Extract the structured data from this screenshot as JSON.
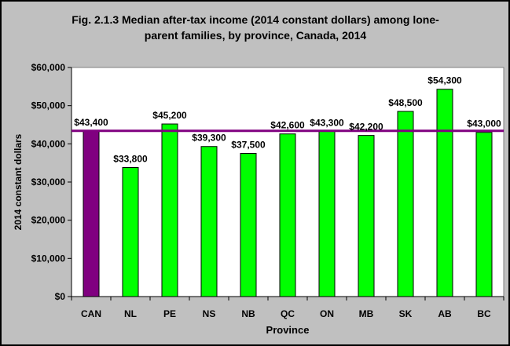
{
  "chart_data": {
    "type": "bar",
    "title_lines": [
      "Fig. 2.1.3 Median after-tax income (2014 constant dollars) among lone-",
      "parent families, by province, Canada, 2014"
    ],
    "xlabel": "Province",
    "ylabel": "2014 constant dollars",
    "categories": [
      "CAN",
      "NL",
      "PE",
      "NS",
      "NB",
      "QC",
      "ON",
      "MB",
      "SK",
      "AB",
      "BC"
    ],
    "values": [
      43400,
      33800,
      45200,
      39300,
      37500,
      42600,
      43300,
      42200,
      48500,
      54300,
      43000
    ],
    "data_labels": [
      "$43,400",
      "$33,800",
      "$45,200",
      "$39,300",
      "$37,500",
      "$42,600",
      "$43,300",
      "$42,200",
      "$48,500",
      "$54,300",
      "$43,000"
    ],
    "ylim": [
      0,
      60000
    ],
    "y_ticks": [
      0,
      10000,
      20000,
      30000,
      40000,
      50000,
      60000
    ],
    "y_tick_labels": [
      "$0",
      "$10,000",
      "$20,000",
      "$30,000",
      "$40,000",
      "$50,000",
      "$60,000"
    ],
    "reference_line": 43400,
    "grid": false,
    "legend": "none",
    "colors": {
      "highlight_bar": "#800080",
      "bar": "#00ff00",
      "reference_line": "#800080",
      "plot_background": "#ffffff",
      "chart_background": "#c0c0c0"
    }
  }
}
